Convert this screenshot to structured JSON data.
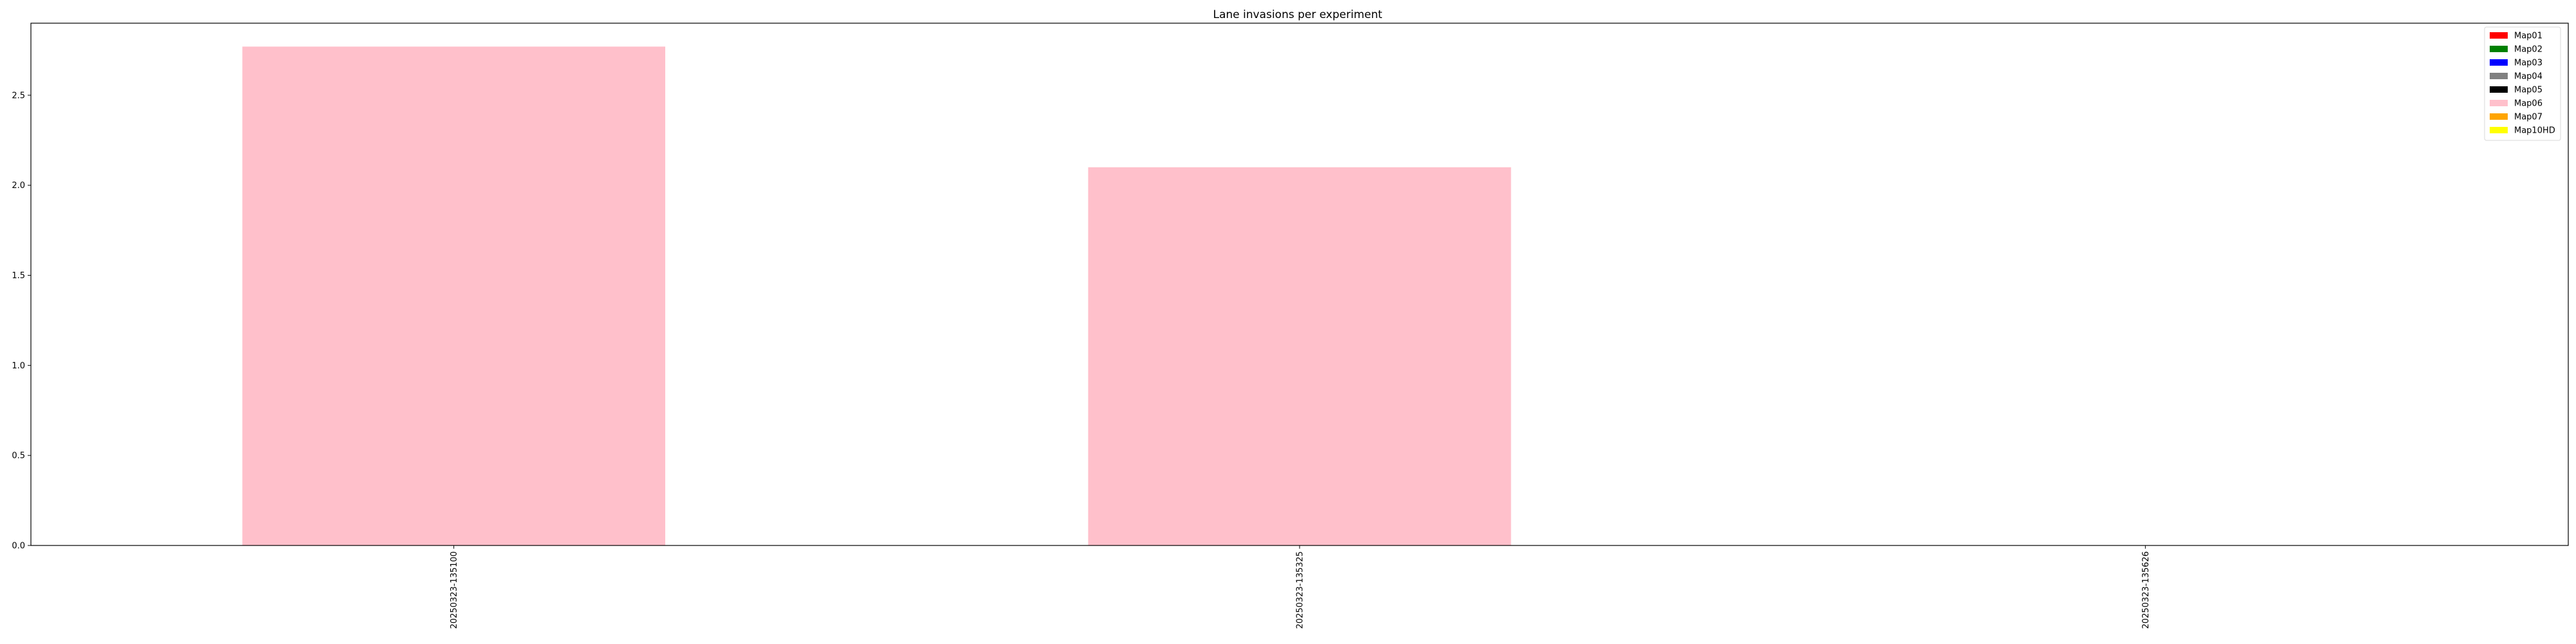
{
  "chart_data": {
    "type": "bar",
    "title": "Lane invasions per experiment",
    "xlabel": "",
    "ylabel": "",
    "categories": [
      "20250323-135100",
      "20250323-135325",
      "20250323-135626"
    ],
    "series": [
      {
        "name": "Map01",
        "color": "#ff0000",
        "values": [
          0,
          0,
          0
        ]
      },
      {
        "name": "Map02",
        "color": "#008000",
        "values": [
          0,
          0,
          0
        ]
      },
      {
        "name": "Map03",
        "color": "#0000ff",
        "values": [
          0,
          0,
          0
        ]
      },
      {
        "name": "Map04",
        "color": "#808080",
        "values": [
          0,
          0,
          0
        ]
      },
      {
        "name": "Map05",
        "color": "#000000",
        "values": [
          0,
          0,
          0
        ]
      },
      {
        "name": "Map06",
        "color": "#ffc0cb",
        "values": [
          2.77,
          2.1,
          0
        ]
      },
      {
        "name": "Map07",
        "color": "#ffa500",
        "values": [
          0,
          0,
          0
        ]
      },
      {
        "name": "Map10HD",
        "color": "#ffff00",
        "values": [
          0,
          0,
          0
        ]
      }
    ],
    "stacked": true,
    "ylim": [
      0,
      2.9
    ],
    "yticks": [
      0.0,
      0.5,
      1.0,
      1.5,
      2.0,
      2.5
    ],
    "ytick_labels": [
      "0.0",
      "0.5",
      "1.0",
      "1.5",
      "2.0",
      "2.5"
    ],
    "legend_position": "top-right",
    "grid": false
  }
}
